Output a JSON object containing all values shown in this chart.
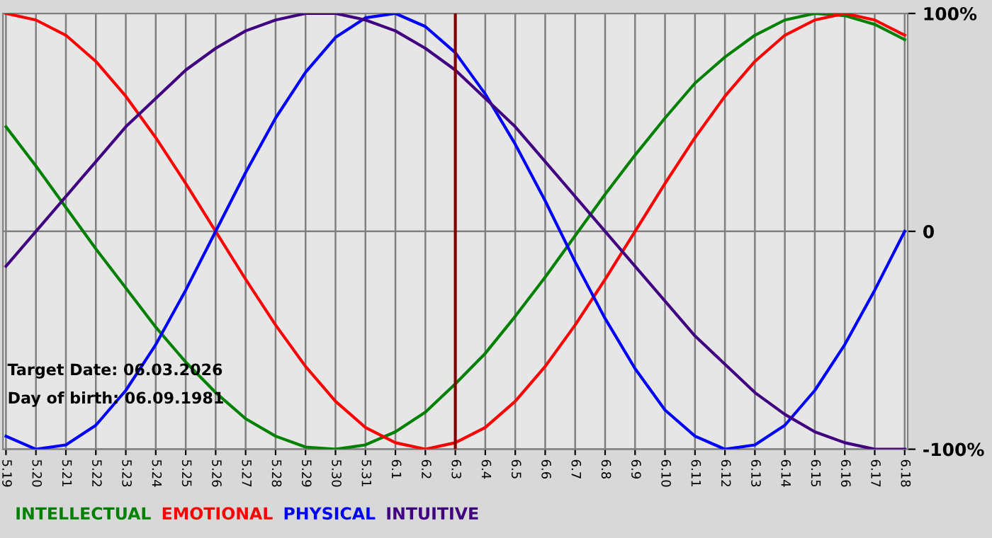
{
  "chart_data": {
    "type": "line",
    "categories": [
      "5.19",
      "5.20",
      "5.21",
      "5.22",
      "5.23",
      "5.24",
      "5.25",
      "5.26",
      "5.27",
      "5.28",
      "5.29",
      "5.30",
      "5.31",
      "6.1",
      "6.2",
      "6.3",
      "6.4",
      "6.5",
      "6.6",
      "6.7",
      "6.8",
      "6.9",
      "6.10",
      "6.11",
      "6.12",
      "6.13",
      "6.14",
      "6.15",
      "6.16",
      "6.17",
      "6.18"
    ],
    "series": [
      {
        "name": "INTELLECTUAL",
        "color": "#008000",
        "values": [
          48,
          30,
          11,
          -8,
          -26,
          -44,
          -60,
          -74,
          -86,
          -94,
          -99,
          -100,
          -98,
          -92,
          -83,
          -70,
          -56,
          -39,
          -21,
          -2,
          17,
          35,
          52,
          68,
          80,
          90,
          97,
          100,
          99,
          95,
          88
        ]
      },
      {
        "name": "EMOTIONAL",
        "color": "#ff0000",
        "values": [
          100,
          97,
          90,
          78,
          62,
          43,
          22,
          0,
          -22,
          -43,
          -62,
          -78,
          -90,
          -97,
          -100,
          -97,
          -90,
          -78,
          -62,
          -43,
          -22,
          0,
          22,
          43,
          62,
          78,
          90,
          97,
          100,
          97,
          90
        ]
      },
      {
        "name": "PHYSICAL",
        "color": "#0000ff",
        "values": [
          -94,
          -100,
          -98,
          -89,
          -73,
          -52,
          -27,
          0,
          27,
          52,
          73,
          89,
          98,
          100,
          94,
          82,
          63,
          40,
          14,
          -14,
          -40,
          -63,
          -82,
          -94,
          -100,
          -98,
          -89,
          -73,
          -52,
          -27,
          0
        ]
      },
      {
        "name": "INTUITIVE",
        "color": "#400080",
        "values": [
          -16,
          0,
          16,
          32,
          48,
          61,
          74,
          84,
          92,
          97,
          100,
          100,
          97,
          92,
          84,
          74,
          61,
          48,
          32,
          16,
          0,
          -16,
          -32,
          -48,
          -61,
          -74,
          -84,
          -92,
          -97,
          -100,
          -100
        ]
      }
    ],
    "ylim": [
      -100,
      100
    ],
    "yticks": [
      {
        "value": 100,
        "label": "100%"
      },
      0,
      {
        "value": -100,
        "label": "-100%"
      }
    ],
    "grid": true,
    "legend": "bottom",
    "marker": "none",
    "line_style": "solid",
    "ref_lines": [
      {
        "axis": "x",
        "value": "6.3",
        "color": "#800000"
      }
    ],
    "annotations": [
      "Target Date: 06.03.2026",
      "Day of birth: 06.09.1981"
    ]
  }
}
